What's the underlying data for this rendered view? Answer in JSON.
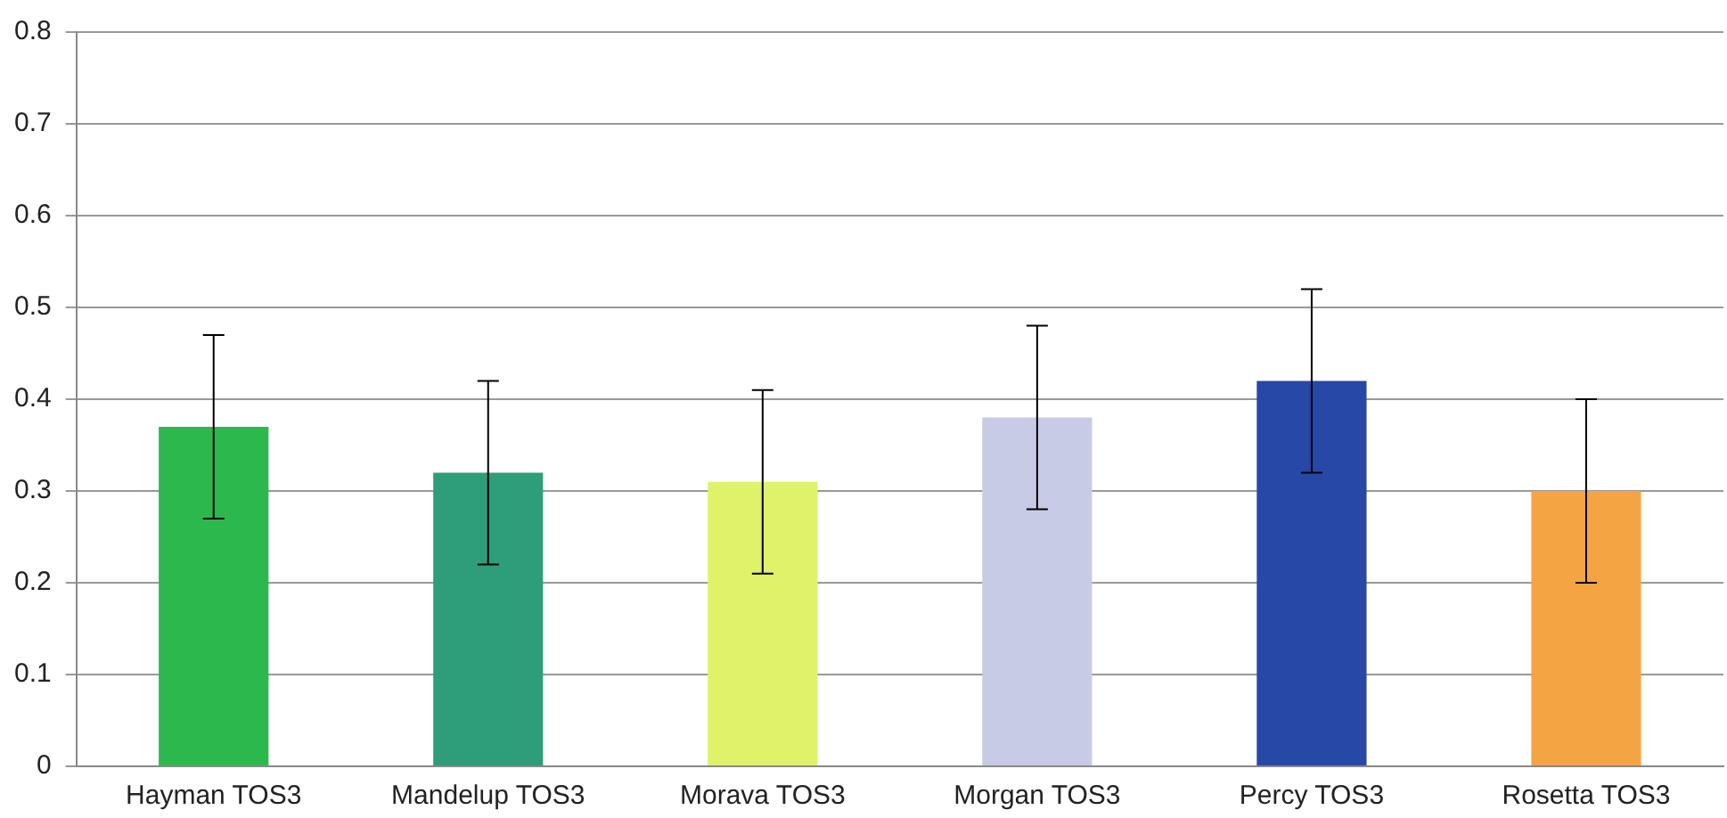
{
  "chart_data": {
    "type": "bar",
    "categories": [
      "Hayman TOS3",
      "Mandelup TOS3",
      "Morava TOS3",
      "Morgan TOS3",
      "Percy TOS3",
      "Rosetta TOS3"
    ],
    "values": [
      0.37,
      0.32,
      0.31,
      0.38,
      0.42,
      0.3
    ],
    "colors": [
      "#2db84e",
      "#2e9e7a",
      "#dff26a",
      "#c8cbe6",
      "#2848a8",
      "#f5a444"
    ],
    "errors": [
      0.1,
      0.1,
      0.1,
      0.1,
      0.1,
      0.1
    ],
    "ylim": [
      0,
      0.8
    ],
    "yticks": [
      0,
      0.1,
      0.2,
      0.3,
      0.4,
      0.5,
      0.6,
      0.7,
      0.8
    ],
    "grid": "y"
  }
}
